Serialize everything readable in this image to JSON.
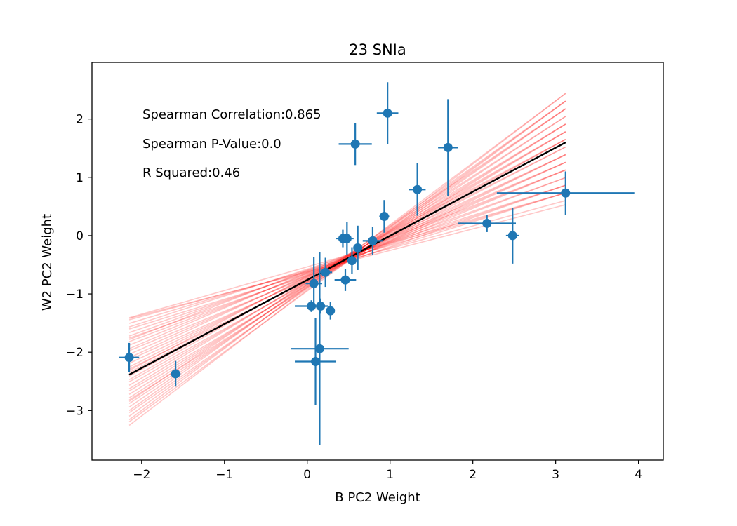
{
  "chart_data": {
    "type": "scatter",
    "title": "23 SNIa",
    "xlabel": "B PC2 Weight",
    "ylabel": "W2 PC2 Weight",
    "xlim": [
      -2.6,
      4.3
    ],
    "ylim": [
      -3.85,
      2.97
    ],
    "xticks": [
      -2,
      -1,
      0,
      1,
      2,
      3,
      4
    ],
    "yticks": [
      -3,
      -2,
      -1,
      0,
      1,
      2
    ],
    "annotations": [
      "Spearman Correlation:0.865",
      "Spearman P-Value:0.0",
      "R Squared:0.46"
    ],
    "colors": {
      "points": "#1f77b4",
      "fit": "#000000",
      "samples": "#ff0000"
    },
    "fit_line": {
      "x0": -2.15,
      "x1": 3.12,
      "slope": 0.756,
      "intercept": -0.76
    },
    "sample_lines": {
      "count": 40,
      "x0": -2.15,
      "x1": 3.12,
      "pivot_x": 0.5,
      "pivot_y": -0.38,
      "slope_min": 0.37,
      "slope_max": 1.08
    },
    "points": [
      {
        "x": -2.15,
        "y": -2.09,
        "xerr": 0.12,
        "yerr": 0.25
      },
      {
        "x": -1.59,
        "y": -2.37,
        "xerr": 0.06,
        "yerr": 0.22
      },
      {
        "x": 0.05,
        "y": -1.21,
        "xerr": 0.2,
        "yerr": 0.1
      },
      {
        "x": 0.08,
        "y": -0.82,
        "xerr": 0.1,
        "yerr": 0.45
      },
      {
        "x": 0.1,
        "y": -2.16,
        "xerr": 0.25,
        "yerr": 0.75
      },
      {
        "x": 0.15,
        "y": -1.94,
        "xerr": 0.35,
        "yerr": 1.65
      },
      {
        "x": 0.16,
        "y": -1.21,
        "xerr": 0.06,
        "yerr": 0.13
      },
      {
        "x": 0.22,
        "y": -0.63,
        "xerr": 0.08,
        "yerr": 0.25
      },
      {
        "x": 0.28,
        "y": -1.29,
        "xerr": 0.05,
        "yerr": 0.15
      },
      {
        "x": 0.43,
        "y": -0.05,
        "xerr": 0.08,
        "yerr": 0.15
      },
      {
        "x": 0.46,
        "y": -0.76,
        "xerr": 0.13,
        "yerr": 0.19
      },
      {
        "x": 0.48,
        "y": -0.05,
        "xerr": 0.08,
        "yerr": 0.28
      },
      {
        "x": 0.54,
        "y": -0.43,
        "xerr": 0.05,
        "yerr": 0.23
      },
      {
        "x": 0.58,
        "y": 1.57,
        "xerr": 0.2,
        "yerr": 0.36
      },
      {
        "x": 0.61,
        "y": -0.21,
        "xerr": 0.05,
        "yerr": 0.38
      },
      {
        "x": 0.79,
        "y": -0.09,
        "xerr": 0.12,
        "yerr": 0.24
      },
      {
        "x": 0.93,
        "y": 0.33,
        "xerr": 0.06,
        "yerr": 0.28
      },
      {
        "x": 0.97,
        "y": 2.1,
        "xerr": 0.13,
        "yerr": 0.53
      },
      {
        "x": 1.33,
        "y": 0.79,
        "xerr": 0.1,
        "yerr": 0.45
      },
      {
        "x": 1.7,
        "y": 1.51,
        "xerr": 0.12,
        "yerr": 0.83
      },
      {
        "x": 2.17,
        "y": 0.21,
        "xerr": 0.35,
        "yerr": 0.15
      },
      {
        "x": 2.48,
        "y": 0.0,
        "xerr": 0.08,
        "yerr": 0.48
      },
      {
        "x": 3.12,
        "y": 0.73,
        "xerr": 0.83,
        "yerr": 0.37
      }
    ]
  }
}
